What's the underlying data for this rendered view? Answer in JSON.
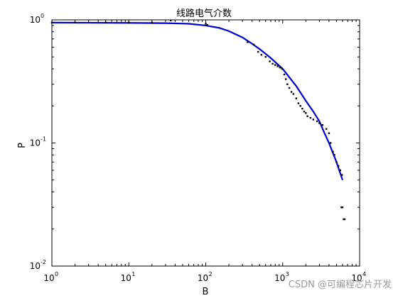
{
  "chart_data": {
    "type": "scatter",
    "title": "线路电气介数",
    "xlabel": "B",
    "ylabel": "P",
    "xscale": "log",
    "yscale": "log",
    "xlim": [
      1,
      10000
    ],
    "ylim": [
      0.01,
      1
    ],
    "x_ticks": [
      {
        "base": "10",
        "exp": "0"
      },
      {
        "base": "10",
        "exp": "1"
      },
      {
        "base": "10",
        "exp": "2"
      },
      {
        "base": "10",
        "exp": "3"
      },
      {
        "base": "10",
        "exp": "4"
      }
    ],
    "y_ticks": [
      {
        "base": "10",
        "exp": "-2"
      },
      {
        "base": "10",
        "exp": "-1"
      },
      {
        "base": "10",
        "exp": "0"
      }
    ],
    "grid": false,
    "series": [
      {
        "kind": "points",
        "color": "#000000",
        "points": [
          [
            1,
            0.95
          ],
          [
            2,
            0.95
          ],
          [
            5,
            0.95
          ],
          [
            10,
            0.95
          ],
          [
            20,
            0.95
          ],
          [
            35,
            0.99
          ],
          [
            100,
            0.93
          ],
          [
            105,
            0.91
          ],
          [
            350,
            0.66
          ],
          [
            420,
            0.63
          ],
          [
            480,
            0.55
          ],
          [
            530,
            0.52
          ],
          [
            600,
            0.5
          ],
          [
            680,
            0.46
          ],
          [
            740,
            0.44
          ],
          [
            800,
            0.43
          ],
          [
            860,
            0.42
          ],
          [
            920,
            0.41
          ],
          [
            980,
            0.4
          ],
          [
            1050,
            0.36
          ],
          [
            1100,
            0.33
          ],
          [
            1150,
            0.3
          ],
          [
            1220,
            0.28
          ],
          [
            1300,
            0.26
          ],
          [
            1380,
            0.25
          ],
          [
            1500,
            0.23
          ],
          [
            1600,
            0.21
          ],
          [
            1700,
            0.2
          ],
          [
            1800,
            0.19
          ],
          [
            1900,
            0.18
          ],
          [
            2000,
            0.175
          ],
          [
            2100,
            0.165
          ],
          [
            2300,
            0.16
          ],
          [
            2500,
            0.155
          ],
          [
            2800,
            0.15
          ],
          [
            3000,
            0.145
          ],
          [
            3300,
            0.14
          ],
          [
            3700,
            0.13
          ],
          [
            4000,
            0.12
          ],
          [
            4200,
            0.1
          ],
          [
            4500,
            0.085
          ],
          [
            4700,
            0.08
          ],
          [
            5000,
            0.07
          ],
          [
            5300,
            0.065
          ],
          [
            5600,
            0.06
          ],
          [
            5900,
            0.055
          ],
          [
            5800,
            0.03
          ],
          [
            6000,
            0.03
          ],
          [
            6200,
            0.024
          ],
          [
            6400,
            0.024
          ]
        ]
      },
      {
        "kind": "fit",
        "color": "#0000cc",
        "points": [
          [
            1,
            0.95
          ],
          [
            10,
            0.945
          ],
          [
            30,
            0.94
          ],
          [
            60,
            0.93
          ],
          [
            100,
            0.9
          ],
          [
            150,
            0.86
          ],
          [
            200,
            0.81
          ],
          [
            300,
            0.72
          ],
          [
            400,
            0.64
          ],
          [
            500,
            0.58
          ],
          [
            700,
            0.49
          ],
          [
            1000,
            0.4
          ],
          [
            1500,
            0.29
          ],
          [
            2000,
            0.22
          ],
          [
            2500,
            0.18
          ],
          [
            3000,
            0.15
          ],
          [
            3500,
            0.12
          ],
          [
            4000,
            0.1
          ],
          [
            5000,
            0.07
          ],
          [
            6000,
            0.05
          ]
        ]
      }
    ]
  },
  "watermark": "CSDN @可编程芯片开发"
}
